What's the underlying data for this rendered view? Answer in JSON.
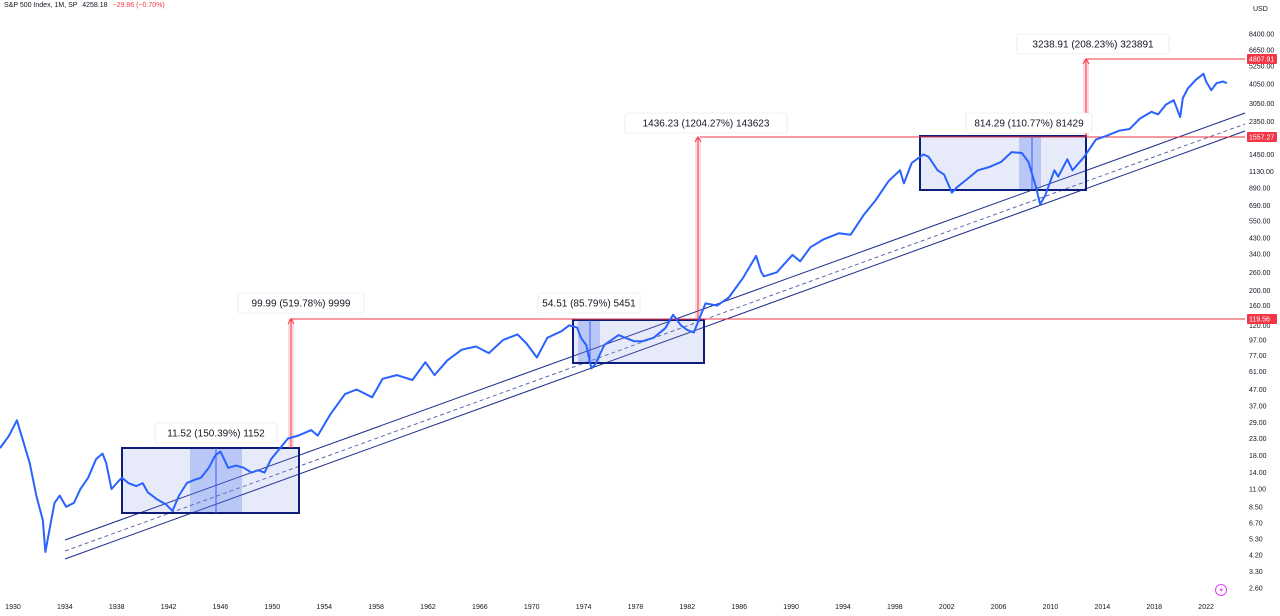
{
  "header": {
    "symbol": "S&P 500 Index, 1M, SP",
    "price": "4258.18",
    "change": "−29.86 (−0.70%)"
  },
  "currency": "USD",
  "colors": {
    "series": "#2962ff",
    "channel": "#1a2a8a",
    "box_border": "#0d1e7a",
    "box_fill": "rgba(120,140,220,0.18)",
    "highlight": "rgba(80,120,240,0.30)",
    "measure": "#f23645",
    "measure_fill": "rgba(242,54,69,0.18)",
    "tag_bg": "#f23645"
  },
  "chart_data": {
    "type": "line",
    "title": "S&P 500 Index, 1M, SP",
    "ylabel": "USD",
    "y_scale": "log",
    "ylim": [
      2.6,
      8400
    ],
    "xlim": [
      1929,
      2025
    ],
    "grid": false,
    "y_ticks": [
      "8400.00",
      "6650.00",
      "5250.00",
      "4050.00",
      "3050.00",
      "2350.00",
      "1850.00",
      "1450.00",
      "1130.00",
      "890.00",
      "690.00",
      "550.00",
      "430.00",
      "340.00",
      "260.00",
      "200.00",
      "160.00",
      "120.00",
      "97.00",
      "77.00",
      "61.00",
      "47.00",
      "37.00",
      "29.00",
      "23.00",
      "18.00",
      "14.00",
      "11.00",
      "8.50",
      "6.70",
      "5.30",
      "4.20",
      "3.30",
      "2.60"
    ],
    "x_ticks": [
      "1930",
      "1934",
      "1938",
      "1942",
      "1946",
      "1950",
      "1954",
      "1958",
      "1962",
      "1966",
      "1970",
      "1974",
      "1978",
      "1982",
      "1986",
      "1990",
      "1994",
      "1998",
      "2002",
      "2006",
      "2010",
      "2014",
      "2018",
      "2022"
    ],
    "series": [
      {
        "x": [
          1929.0,
          1929.7,
          1930.3,
          1930.8,
          1931.3,
          1931.8,
          1932.3,
          1932.5,
          1932.8,
          1933.2,
          1933.6,
          1934.1,
          1934.7,
          1935.2,
          1935.8,
          1936.4,
          1936.9,
          1937.2,
          1937.6,
          1938.0,
          1938.4,
          1938.9,
          1939.5,
          1940.0,
          1940.4,
          1941.1,
          1941.8,
          1942.3,
          1942.8,
          1943.4,
          1943.9,
          1944.5,
          1945.1,
          1945.6,
          1946.0,
          1946.6,
          1947.2,
          1947.8,
          1948.4,
          1948.9,
          1949.4,
          1949.9,
          1950.6,
          1951.2,
          1952.0,
          1953.0,
          1953.5,
          1954.5,
          1955.6,
          1956.5,
          1957.7,
          1958.5,
          1959.6,
          1960.8,
          1961.8,
          1962.5,
          1963.5,
          1964.6,
          1965.7,
          1966.7,
          1967.8,
          1968.9,
          1969.6,
          1970.4,
          1971.2,
          1972.3,
          1972.9,
          1973.5,
          1973.8,
          1974.2,
          1974.6,
          1974.9,
          1975.6,
          1976.7,
          1977.9,
          1978.5,
          1979.4,
          1980.3,
          1980.9,
          1981.5,
          1982.0,
          1982.5,
          1983.4,
          1984.3,
          1985.2,
          1986.3,
          1987.3,
          1987.7,
          1987.9,
          1988.9,
          1990.1,
          1990.7,
          1991.5,
          1992.5,
          1993.7,
          1994.6,
          1995.6,
          1996.5,
          1997.5,
          1998.4,
          1998.7,
          1999.3,
          2000.2,
          2000.6,
          2001.3,
          2001.8,
          2002.4,
          2002.8,
          2003.5,
          2004.4,
          2005.2,
          2006.2,
          2007.0,
          2007.8,
          2008.3,
          2008.9,
          2009.2,
          2009.6,
          2010.3,
          2010.6,
          2011.3,
          2011.7,
          2012.6,
          2013.5,
          2014.3,
          2015.3,
          2016.1,
          2016.9,
          2017.8,
          2018.3,
          2018.9,
          2019.5,
          2020.0,
          2020.2,
          2020.6,
          2021.2,
          2021.8,
          2022.0,
          2022.4,
          2022.8,
          2023.3,
          2023.6
        ],
        "values": [
          20,
          24,
          30,
          22,
          16,
          10,
          7,
          4.4,
          6,
          9,
          10,
          8.5,
          9,
          11,
          13,
          17,
          18.5,
          16,
          11,
          12,
          13,
          12,
          11.5,
          12,
          10.5,
          9.5,
          8.8,
          8,
          10,
          12,
          12.5,
          13,
          15,
          18,
          19,
          15,
          15.5,
          15,
          14,
          14.5,
          14,
          17,
          20,
          23,
          24,
          26,
          24,
          33,
          44,
          47,
          42,
          55,
          58,
          54,
          70,
          58,
          72,
          84,
          88,
          80,
          97,
          105,
          92,
          75,
          100,
          110,
          120,
          116,
          100,
          90,
          64,
          68,
          90,
          104,
          95,
          95,
          100,
          115,
          140,
          120,
          112,
          108,
          165,
          160,
          180,
          240,
          330,
          260,
          245,
          260,
          335,
          305,
          375,
          420,
          460,
          450,
          600,
          740,
          980,
          1150,
          950,
          1280,
          1450,
          1400,
          1150,
          1080,
          830,
          900,
          1000,
          1150,
          1200,
          1300,
          1500,
          1480,
          1300,
          890,
          700,
          800,
          1150,
          1050,
          1350,
          1150,
          1400,
          1800,
          1900,
          2050,
          2100,
          2450,
          2700,
          2600,
          3000,
          3200,
          2500,
          3300,
          3800,
          4300,
          4700,
          4200,
          3700,
          4100,
          4200,
          4100
        ]
      }
    ],
    "annotations": [
      {
        "text": "11.52 (150.39%) 1152"
      },
      {
        "text": "99.99 (519.78%) 9999"
      },
      {
        "text": "54.51 (85.79%) 5451"
      },
      {
        "text": "1436.23 (1204.27%) 143623"
      },
      {
        "text": "814.29 (110.77%) 81429"
      },
      {
        "text": "3238.91 (208.23%) 323891"
      }
    ],
    "price_tags": [
      "4807.91",
      "1557.27",
      "119.56"
    ]
  }
}
